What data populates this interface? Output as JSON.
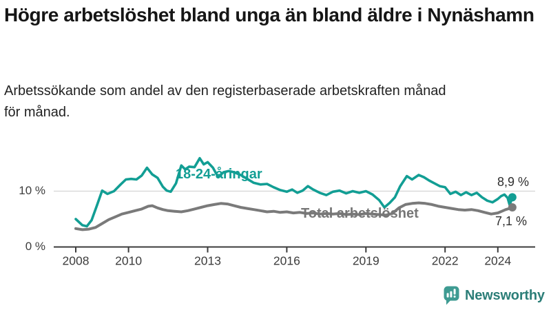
{
  "header": {
    "title": "Högre arbetslöshet bland unga än bland äldre i Nynäshamn",
    "subtitle_line1": "Arbetssökande som andel av den registerbaserade arbetskraften månad",
    "subtitle_line2": "för månad."
  },
  "footer": {
    "brand": "Newsworthy",
    "icon": "newsworthy-speech-bubble-bar-chart-icon",
    "icon_color": "#3E9B92",
    "brand_color": "#2C7E78"
  },
  "chart_data": {
    "type": "line",
    "title": "Högre arbetslöshet bland unga än bland äldre i Nynäshamn",
    "subtitle": "Arbetssökande som andel av den registerbaserade arbetskraften månad för månad.",
    "xlabel": "",
    "ylabel": "",
    "grid": "horizontal-only",
    "legend_position": "inline-labels",
    "x_axis": {
      "ticks": [
        2008,
        2010,
        2013,
        2016,
        2019,
        2022,
        2024
      ],
      "range": [
        2008,
        2024.9
      ]
    },
    "y_axis": {
      "ticks": [
        {
          "value": 0,
          "label": "0 %"
        },
        {
          "value": 10,
          "label": "10 %"
        }
      ],
      "grid_values": [
        10
      ],
      "range": [
        0,
        19.5
      ]
    },
    "series": [
      {
        "name": "18-24-åringar",
        "color": "#129E94",
        "end_label": "8,9 %",
        "end_value": 8.9,
        "points": [
          [
            2008,
            5.0
          ],
          [
            2008.25,
            3.9
          ],
          [
            2008.42,
            3.7
          ],
          [
            2008.6,
            4.8
          ],
          [
            2008.8,
            7.4
          ],
          [
            2009,
            10.1
          ],
          [
            2009.2,
            9.5
          ],
          [
            2009.45,
            10.0
          ],
          [
            2009.7,
            11.2
          ],
          [
            2009.9,
            12.1
          ],
          [
            2010.1,
            12.2
          ],
          [
            2010.3,
            12.1
          ],
          [
            2010.5,
            12.8
          ],
          [
            2010.7,
            14.2
          ],
          [
            2010.9,
            13.0
          ],
          [
            2011.1,
            12.4
          ],
          [
            2011.3,
            10.8
          ],
          [
            2011.45,
            10.1
          ],
          [
            2011.6,
            9.9
          ],
          [
            2011.8,
            11.4
          ],
          [
            2012,
            14.6
          ],
          [
            2012.15,
            13.9
          ],
          [
            2012.3,
            14.4
          ],
          [
            2012.5,
            14.3
          ],
          [
            2012.7,
            15.9
          ],
          [
            2012.85,
            14.8
          ],
          [
            2013,
            15.2
          ],
          [
            2013.2,
            14.2
          ],
          [
            2013.4,
            12.5
          ],
          [
            2013.6,
            13.4
          ],
          [
            2013.8,
            13.6
          ],
          [
            2014,
            13.4
          ],
          [
            2014.25,
            12.9
          ],
          [
            2014.5,
            12.2
          ],
          [
            2014.75,
            11.5
          ],
          [
            2015,
            11.2
          ],
          [
            2015.25,
            11.3
          ],
          [
            2015.5,
            10.7
          ],
          [
            2015.75,
            10.2
          ],
          [
            2016,
            9.9
          ],
          [
            2016.2,
            10.3
          ],
          [
            2016.4,
            9.7
          ],
          [
            2016.6,
            10.1
          ],
          [
            2016.8,
            10.9
          ],
          [
            2017,
            10.3
          ],
          [
            2017.25,
            9.7
          ],
          [
            2017.5,
            9.3
          ],
          [
            2017.75,
            9.9
          ],
          [
            2018,
            10.1
          ],
          [
            2018.25,
            9.6
          ],
          [
            2018.5,
            10.0
          ],
          [
            2018.75,
            9.7
          ],
          [
            2019,
            10.0
          ],
          [
            2019.25,
            9.4
          ],
          [
            2019.5,
            8.4
          ],
          [
            2019.7,
            7.1
          ],
          [
            2019.9,
            7.9
          ],
          [
            2020.1,
            8.9
          ],
          [
            2020.3,
            10.9
          ],
          [
            2020.55,
            12.7
          ],
          [
            2020.75,
            12.1
          ],
          [
            2021,
            12.9
          ],
          [
            2021.2,
            12.5
          ],
          [
            2021.4,
            11.9
          ],
          [
            2021.6,
            11.4
          ],
          [
            2021.8,
            10.9
          ],
          [
            2022,
            10.7
          ],
          [
            2022.2,
            9.5
          ],
          [
            2022.4,
            9.9
          ],
          [
            2022.6,
            9.3
          ],
          [
            2022.8,
            9.8
          ],
          [
            2023,
            9.3
          ],
          [
            2023.2,
            9.7
          ],
          [
            2023.4,
            8.9
          ],
          [
            2023.6,
            8.3
          ],
          [
            2023.8,
            8.0
          ],
          [
            2024,
            8.6
          ],
          [
            2024.12,
            9.1
          ],
          [
            2024.25,
            9.4
          ],
          [
            2024.37,
            8.8
          ],
          [
            2024.45,
            7.5
          ],
          [
            2024.55,
            8.9
          ]
        ]
      },
      {
        "name": "Total arbetslöshet",
        "color": "#7A7A7A",
        "end_label": "7,1 %",
        "end_value": 7.1,
        "points": [
          [
            2008,
            3.3
          ],
          [
            2008.25,
            3.1
          ],
          [
            2008.5,
            3.2
          ],
          [
            2008.75,
            3.5
          ],
          [
            2009,
            4.2
          ],
          [
            2009.25,
            4.9
          ],
          [
            2009.5,
            5.4
          ],
          [
            2009.75,
            5.9
          ],
          [
            2010,
            6.2
          ],
          [
            2010.25,
            6.5
          ],
          [
            2010.5,
            6.8
          ],
          [
            2010.75,
            7.3
          ],
          [
            2010.9,
            7.4
          ],
          [
            2011.1,
            7.0
          ],
          [
            2011.3,
            6.7
          ],
          [
            2011.5,
            6.5
          ],
          [
            2011.75,
            6.4
          ],
          [
            2012,
            6.3
          ],
          [
            2012.25,
            6.5
          ],
          [
            2012.5,
            6.8
          ],
          [
            2012.75,
            7.1
          ],
          [
            2013,
            7.4
          ],
          [
            2013.25,
            7.6
          ],
          [
            2013.5,
            7.8
          ],
          [
            2013.75,
            7.7
          ],
          [
            2014,
            7.4
          ],
          [
            2014.25,
            7.1
          ],
          [
            2014.5,
            6.9
          ],
          [
            2014.75,
            6.7
          ],
          [
            2015,
            6.5
          ],
          [
            2015.25,
            6.3
          ],
          [
            2015.5,
            6.4
          ],
          [
            2015.75,
            6.2
          ],
          [
            2016,
            6.3
          ],
          [
            2016.25,
            6.1
          ],
          [
            2016.5,
            6.2
          ],
          [
            2016.75,
            6.0
          ],
          [
            2017,
            6.1
          ],
          [
            2017.25,
            5.9
          ],
          [
            2017.5,
            6.0
          ],
          [
            2017.75,
            5.9
          ],
          [
            2018,
            6.0
          ],
          [
            2018.25,
            5.8
          ],
          [
            2018.5,
            5.9
          ],
          [
            2018.75,
            5.8
          ],
          [
            2019,
            6.0
          ],
          [
            2019.25,
            5.9
          ],
          [
            2019.5,
            5.8
          ],
          [
            2019.75,
            5.7
          ],
          [
            2020,
            6.0
          ],
          [
            2020.25,
            7.0
          ],
          [
            2020.5,
            7.6
          ],
          [
            2020.75,
            7.8
          ],
          [
            2021,
            7.9
          ],
          [
            2021.25,
            7.8
          ],
          [
            2021.5,
            7.6
          ],
          [
            2021.75,
            7.3
          ],
          [
            2022,
            7.1
          ],
          [
            2022.25,
            6.9
          ],
          [
            2022.5,
            6.7
          ],
          [
            2022.75,
            6.6
          ],
          [
            2023,
            6.7
          ],
          [
            2023.25,
            6.5
          ],
          [
            2023.5,
            6.2
          ],
          [
            2023.75,
            5.9
          ],
          [
            2024,
            6.1
          ],
          [
            2024.15,
            6.4
          ],
          [
            2024.3,
            6.7
          ],
          [
            2024.45,
            6.9
          ],
          [
            2024.55,
            7.1
          ]
        ]
      }
    ]
  }
}
